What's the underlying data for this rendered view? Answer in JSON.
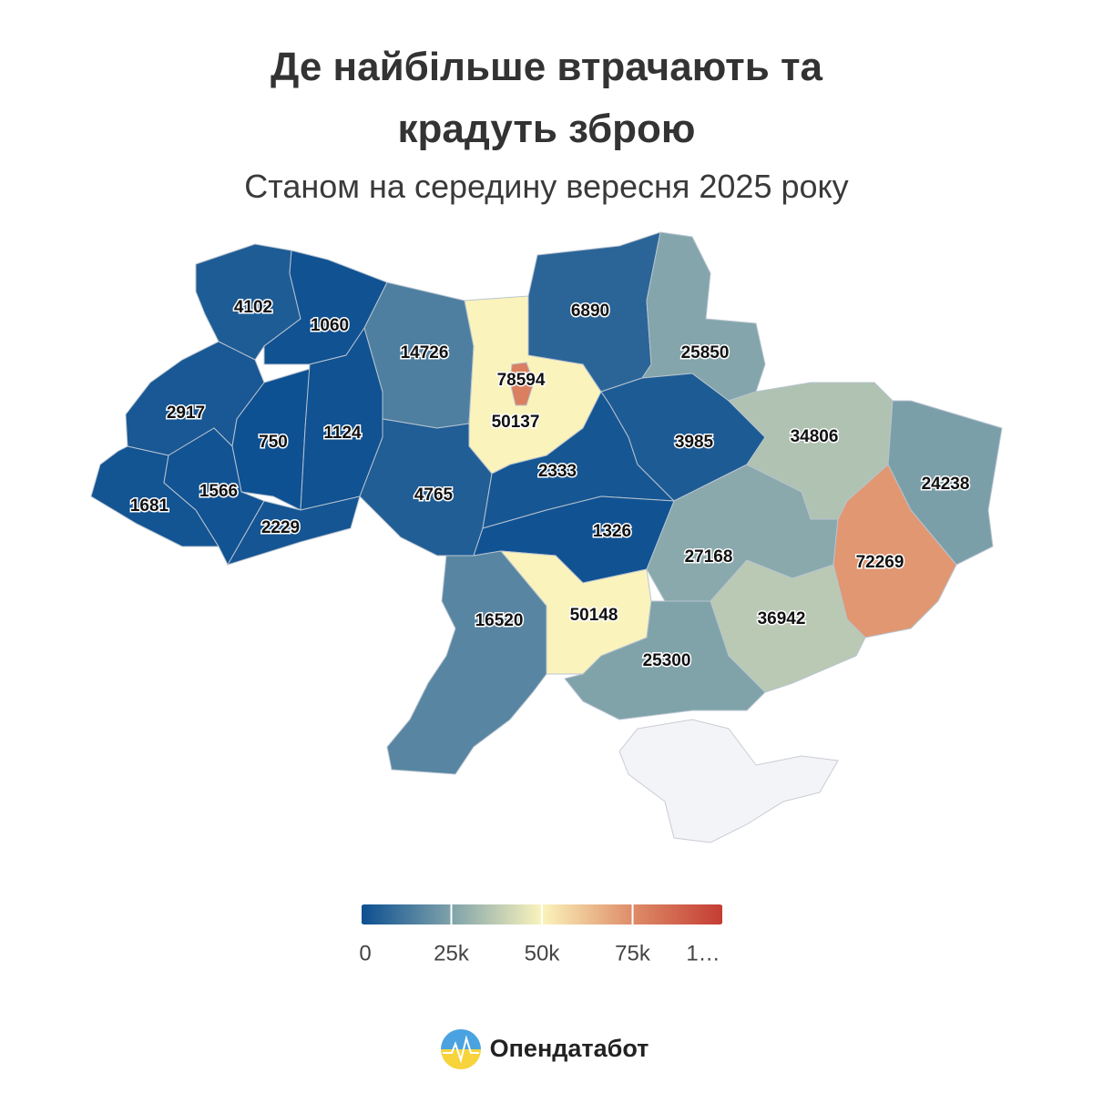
{
  "chart_data": {
    "type": "choropleth",
    "title": "Де найбільше втрачають та крадуть зброю",
    "subtitle": "Станом на середину вересня 2025 року",
    "values": [
      4102,
      1060,
      2917,
      750,
      1124,
      1681,
      1566,
      2229,
      14726,
      78594,
      50137,
      4765,
      2333,
      6890,
      25850,
      3985,
      34806,
      24238,
      1326,
      27168,
      72269,
      16520,
      50148,
      36942,
      25300
    ],
    "colors": [
      "#0b4e91",
      "#7fa2aa",
      "#fbf4bc",
      "#de8c68",
      "#c43c33"
    ],
    "zlim": [
      0,
      100000
    ],
    "zticks": [
      0,
      {
        "value": 25000,
        "label": "25k"
      },
      {
        "value": 50000,
        "label": "50k"
      },
      {
        "value": 75000,
        "label": "75k"
      },
      {
        "value": 100000,
        "label": "1…"
      }
    ]
  },
  "brand": "Опендатабот"
}
